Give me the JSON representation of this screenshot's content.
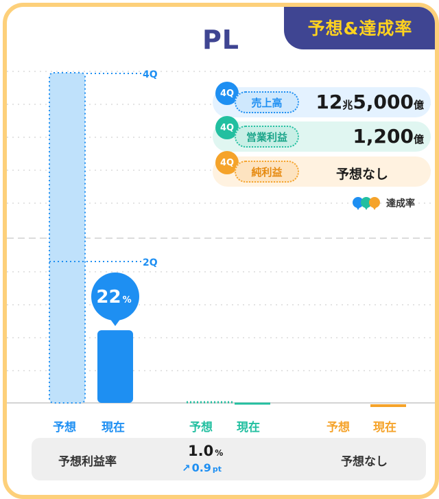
{
  "badge": "予想&達成率",
  "title": "PL",
  "quarters": {
    "q4": "4Q",
    "q2": "2Q"
  },
  "kpi": [
    {
      "q": "4Q",
      "label": "売上高",
      "value_parts": [
        "12",
        "兆",
        "5,000",
        "億"
      ],
      "color": "#1E8FF2",
      "bg": "#E4F2FF"
    },
    {
      "q": "4Q",
      "label": "営業利益",
      "value_parts": [
        "1,200",
        "億"
      ],
      "color": "#22BFA0",
      "bg": "#E0F6F1"
    },
    {
      "q": "4Q",
      "label": "純利益",
      "value_text": "予想なし",
      "color": "#F5A32A",
      "bg": "#FFF2E0"
    }
  ],
  "legend_label": "達成率",
  "chart_data": {
    "type": "bar",
    "categories": [
      "売上高",
      "営業利益",
      "純利益"
    ],
    "series": [
      {
        "name": "予想",
        "values": [
          100,
          0,
          null
        ]
      },
      {
        "name": "現在",
        "values": [
          22,
          0,
          0
        ]
      }
    ],
    "achievement": {
      "value": "22",
      "unit": "%"
    },
    "ylim": [
      0,
      100
    ],
    "grid": true
  },
  "x_labels": {
    "forecast": "予想",
    "current": "現在"
  },
  "footer": {
    "label": "予想利益率",
    "value": "1.0",
    "value_unit": "%",
    "change_arrow": "↗",
    "change": "0.9",
    "change_unit": "pt",
    "net_text": "予想なし"
  },
  "colors": {
    "blue": "#1E8FF2",
    "light_blue": "#BFE1FB",
    "teal": "#22BFA0",
    "orange": "#F5A32A",
    "navy": "#3F4592"
  }
}
